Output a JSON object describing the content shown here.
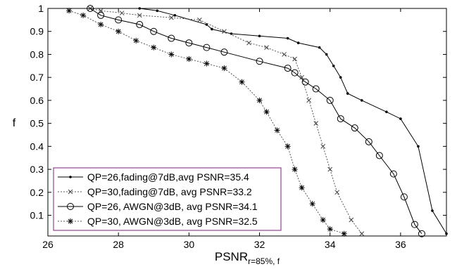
{
  "chart_data": {
    "type": "line",
    "title": "",
    "xlabel_main": "PSNR",
    "xlabel_sub": "r=85%, f",
    "ylabel": "f",
    "xlim": [
      26,
      37.3
    ],
    "ylim": [
      0.01,
      1.0
    ],
    "xticks": [
      "26",
      "28",
      "30",
      "32",
      "34",
      "36"
    ],
    "yticks": [
      "0.1",
      "0.2",
      "0.3",
      "0.4",
      "0.5",
      "0.6",
      "0.7",
      "0.8",
      "0.9",
      "1"
    ],
    "grid": false,
    "legend_position": "bottom-left",
    "legend_border_color": "#7a1f7a",
    "series": [
      {
        "name": "QP=26,fading@7dB,avg PSNR=35.4",
        "line": "solid",
        "marker": "dot",
        "x": [
          28.6,
          29.1,
          29.6,
          30.5,
          30.65,
          31.2,
          32.0,
          32.8,
          33.1,
          33.7,
          33.9,
          34.1,
          34.3,
          34.5,
          34.9,
          35.6,
          36.0,
          36.5,
          36.9,
          37.3
        ],
        "y": [
          1.0,
          0.99,
          0.97,
          0.93,
          0.91,
          0.89,
          0.88,
          0.87,
          0.85,
          0.83,
          0.8,
          0.75,
          0.7,
          0.63,
          0.6,
          0.55,
          0.52,
          0.4,
          0.12,
          0.02
        ]
      },
      {
        "name": "QP=30,fading@7dB, avg PSNR=33.2",
        "line": "dotted",
        "marker": "x",
        "x": [
          27.2,
          27.5,
          28.1,
          28.6,
          29.5,
          30.3,
          31.0,
          31.7,
          32.2,
          32.7,
          33.0,
          33.2,
          33.4,
          33.6,
          33.8,
          34.0,
          34.2,
          34.6,
          34.9
        ],
        "y": [
          1.0,
          0.99,
          0.98,
          0.97,
          0.96,
          0.95,
          0.9,
          0.85,
          0.83,
          0.8,
          0.78,
          0.7,
          0.6,
          0.5,
          0.4,
          0.3,
          0.2,
          0.08,
          0.02
        ]
      },
      {
        "name": "QP=26, AWGN@3dB, avg PSNR=34.1",
        "line": "solid",
        "marker": "circle",
        "x": [
          27.2,
          27.5,
          28.0,
          28.6,
          29.0,
          29.5,
          30.0,
          30.5,
          31.0,
          32.0,
          32.8,
          33.0,
          33.3,
          33.6,
          34.0,
          34.3,
          34.7,
          35.1,
          35.4,
          35.8,
          36.1,
          36.4,
          36.6
        ],
        "y": [
          1.0,
          0.97,
          0.95,
          0.93,
          0.9,
          0.87,
          0.85,
          0.83,
          0.81,
          0.77,
          0.74,
          0.72,
          0.68,
          0.65,
          0.6,
          0.52,
          0.48,
          0.42,
          0.36,
          0.28,
          0.18,
          0.06,
          0.02
        ]
      },
      {
        "name": "QP=30, AWGN@3dB, avg PSNR=32.5",
        "line": "dotted",
        "marker": "asterisk",
        "x": [
          26.6,
          27.0,
          27.5,
          28.0,
          28.5,
          29.0,
          29.5,
          30.0,
          30.5,
          31.0,
          31.5,
          32.0,
          32.2,
          32.5,
          32.8,
          33.0,
          33.2,
          33.5,
          33.8,
          34.0,
          34.4
        ],
        "y": [
          0.99,
          0.97,
          0.93,
          0.9,
          0.86,
          0.83,
          0.8,
          0.78,
          0.76,
          0.74,
          0.68,
          0.6,
          0.55,
          0.47,
          0.4,
          0.3,
          0.22,
          0.15,
          0.08,
          0.04,
          0.02
        ]
      }
    ]
  }
}
